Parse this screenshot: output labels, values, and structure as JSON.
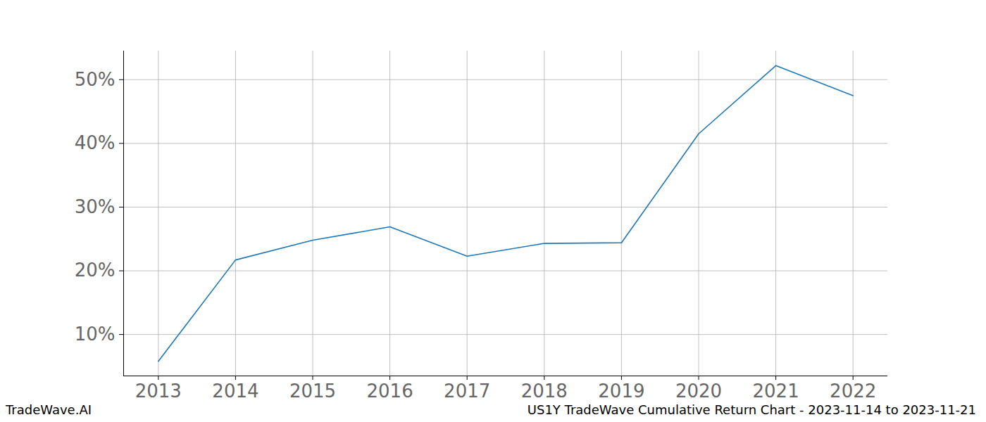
{
  "chart_data": {
    "type": "line",
    "title": "US1Y TradeWave Cumulative Return Chart - 2023-11-14 to 2023-11-21",
    "source": "TradeWave.AI",
    "x": [
      2013,
      2014,
      2015,
      2016,
      2017,
      2018,
      2019,
      2020,
      2021,
      2022
    ],
    "values": [
      5.8,
      21.7,
      24.8,
      26.9,
      22.3,
      24.3,
      24.4,
      41.5,
      52.2,
      47.5
    ],
    "color": "#1f77b4",
    "xlim": [
      2012.55,
      2022.45
    ],
    "xticks": [
      2013,
      2014,
      2015,
      2016,
      2017,
      2018,
      2019,
      2020,
      2021,
      2022
    ],
    "ylim": [
      3.5,
      54.5
    ],
    "yticks": [
      {
        "value": 10,
        "label": "10%"
      },
      {
        "value": 20,
        "label": "20%"
      },
      {
        "value": 30,
        "label": "30%"
      },
      {
        "value": 40,
        "label": "40%"
      },
      {
        "value": 50,
        "label": "50%"
      }
    ],
    "grid": true
  }
}
